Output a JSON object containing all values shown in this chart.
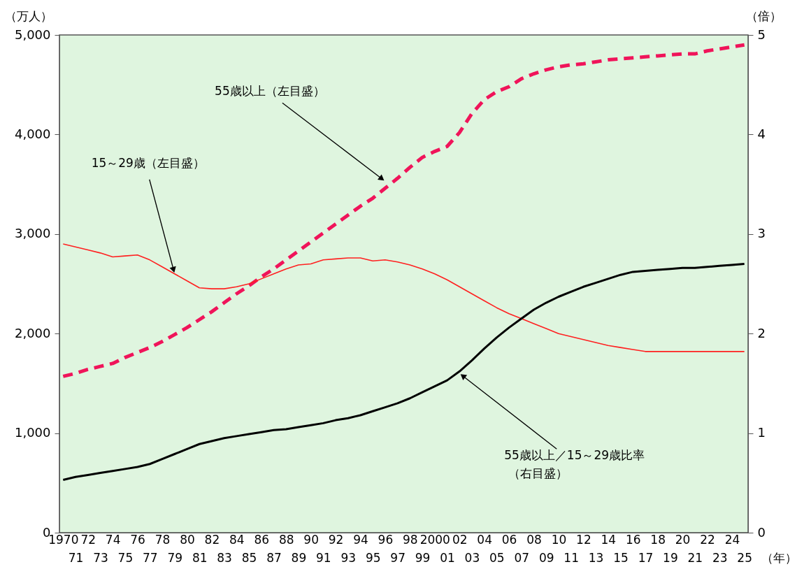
{
  "chart_data": {
    "type": "line",
    "xlabel": "（年）",
    "ylabel": "（万人）",
    "y2label": "（倍）",
    "categories": [
      "1970",
      "71",
      "72",
      "73",
      "74",
      "75",
      "76",
      "77",
      "78",
      "79",
      "80",
      "81",
      "82",
      "83",
      "84",
      "85",
      "86",
      "87",
      "88",
      "89",
      "90",
      "91",
      "92",
      "93",
      "94",
      "95",
      "96",
      "97",
      "98",
      "99",
      "2000",
      "01",
      "02",
      "03",
      "04",
      "05",
      "06",
      "07",
      "08",
      "09",
      "10",
      "11",
      "12",
      "13",
      "14",
      "15",
      "16",
      "17",
      "18",
      "19",
      "20",
      "21",
      "22",
      "23",
      "24",
      "25"
    ],
    "series": [
      {
        "color": "#f0145a",
        "line_style": "dashed",
        "axis": "y",
        "values": [
          1570,
          1600,
          1640,
          1670,
          1700,
          1760,
          1810,
          1860,
          1920,
          1990,
          2060,
          2140,
          2220,
          2310,
          2400,
          2480,
          2570,
          2650,
          2740,
          2830,
          2920,
          3010,
          3100,
          3190,
          3280,
          3360,
          3460,
          3560,
          3670,
          3770,
          3830,
          3880,
          4020,
          4210,
          4350,
          4430,
          4480,
          4560,
          4610,
          4650,
          4680,
          4700,
          4710,
          4730,
          4750,
          4760,
          4770,
          4780,
          4790,
          4800,
          4810,
          4810,
          4840,
          4860,
          4880,
          4900
        ]
      },
      {
        "color": "#ff2020",
        "line_style": "solid",
        "axis": "y",
        "values": [
          2900,
          2870,
          2840,
          2810,
          2770,
          2780,
          2790,
          2740,
          2670,
          2600,
          2530,
          2460,
          2450,
          2450,
          2470,
          2500,
          2550,
          2600,
          2650,
          2690,
          2700,
          2740,
          2750,
          2760,
          2760,
          2730,
          2740,
          2720,
          2690,
          2650,
          2600,
          2540,
          2470,
          2400,
          2330,
          2260,
          2200,
          2150,
          2100,
          2050,
          2000,
          1970,
          1940,
          1910,
          1880,
          1860,
          1840,
          1820,
          1820,
          1820,
          1820,
          1820,
          1820,
          1820,
          1820,
          1820
        ]
      },
      {
        "color": "#000000",
        "line_style": "solid",
        "axis": "y2",
        "values": [
          0.53,
          0.56,
          0.58,
          0.6,
          0.62,
          0.64,
          0.66,
          0.69,
          0.74,
          0.79,
          0.84,
          0.89,
          0.92,
          0.95,
          0.97,
          0.99,
          1.01,
          1.03,
          1.04,
          1.06,
          1.08,
          1.1,
          1.13,
          1.15,
          1.18,
          1.22,
          1.26,
          1.3,
          1.35,
          1.41,
          1.47,
          1.53,
          1.62,
          1.73,
          1.85,
          1.96,
          2.06,
          2.15,
          2.24,
          2.31,
          2.37,
          2.42,
          2.47,
          2.51,
          2.55,
          2.59,
          2.62,
          2.63,
          2.64,
          2.65,
          2.66,
          2.66,
          2.67,
          2.68,
          2.69,
          2.7
        ]
      }
    ],
    "ylim": [
      0,
      5000
    ],
    "yticks": [
      0,
      {
        "value": 1000,
        "label": "1,000"
      },
      {
        "value": 2000,
        "label": "2,000"
      },
      {
        "value": 3000,
        "label": "3,000"
      },
      {
        "value": 4000,
        "label": "4,000"
      },
      {
        "value": 5000,
        "label": "5,000"
      }
    ],
    "y2lim": [
      0,
      5
    ],
    "y2ticks": [
      0,
      1,
      2,
      3,
      4,
      5
    ],
    "annotations": [
      {
        "text": "55歳以上（左目盛）",
        "x": "96",
        "y": 3530
      },
      {
        "text": "15～29歳（左目盛）",
        "x": "79",
        "y": 2600
      },
      {
        "text": "55歳以上／15～29歳比率",
        "x": "02",
        "y": 1600
      },
      "（右目盛）"
    ],
    "grid": false
  }
}
